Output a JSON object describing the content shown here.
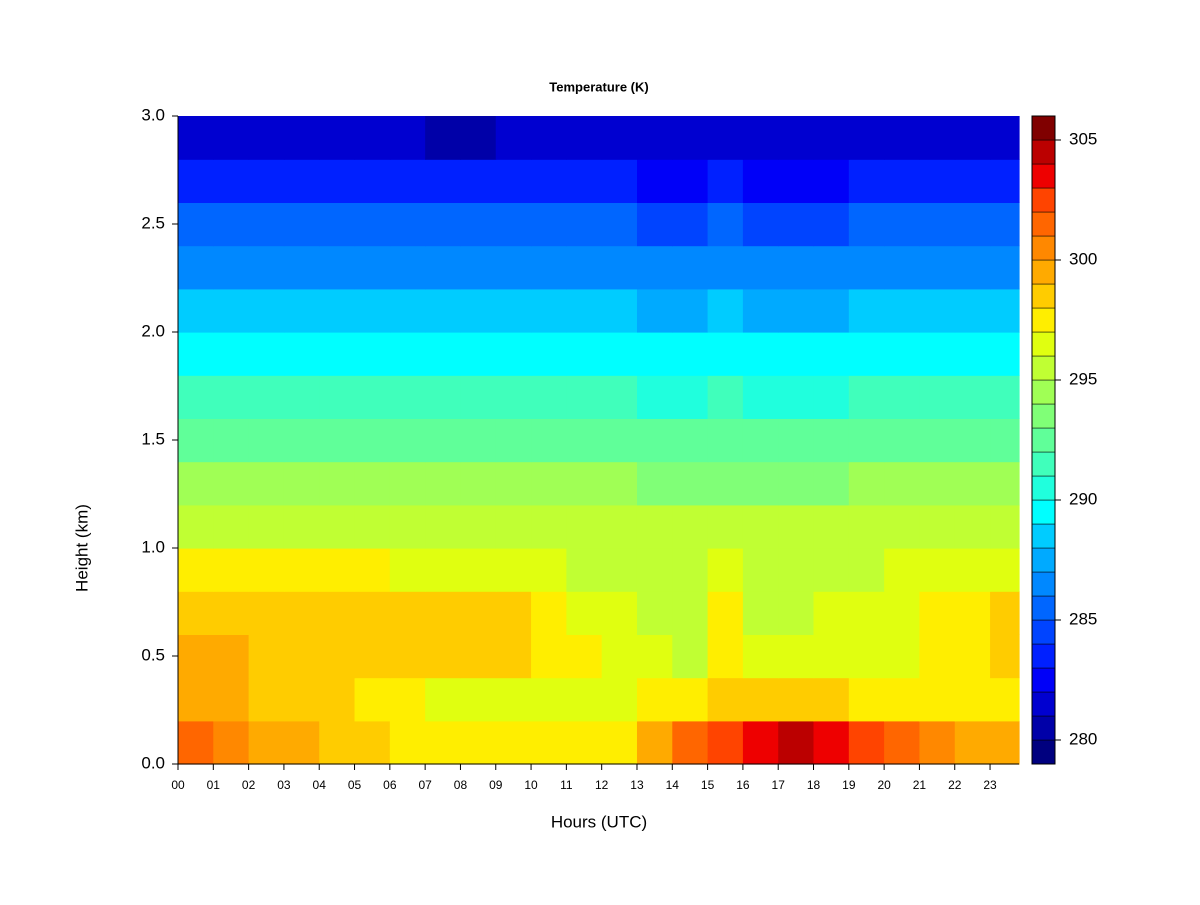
{
  "chart_data": {
    "type": "heatmap",
    "title": "Temperature (K)",
    "x_label": "Hours (UTC)",
    "y_label": "Height (km)",
    "x": [
      0,
      1,
      2,
      3,
      4,
      5,
      6,
      7,
      8,
      9,
      10,
      11,
      12,
      13,
      14,
      15,
      16,
      17,
      18,
      19,
      20,
      21,
      22,
      23
    ],
    "y": [
      0,
      0.2,
      0.4,
      0.6,
      0.8,
      1.0,
      1.2,
      1.4,
      1.6,
      1.8,
      2.0,
      2.2,
      2.4,
      2.6,
      2.8
    ],
    "z": [
      [
        301,
        300,
        299.5,
        299,
        298.5,
        298,
        297.5,
        297,
        297,
        297,
        297,
        297,
        297.5,
        299,
        301,
        302,
        303,
        304,
        303.5,
        302,
        301,
        300,
        299.5,
        299
      ],
      [
        299,
        299,
        298.5,
        298,
        298,
        297.5,
        297,
        296.5,
        296.5,
        296.5,
        296.5,
        296.5,
        296.5,
        297,
        297.5,
        298,
        298.5,
        298.5,
        298,
        297.5,
        297,
        297,
        297,
        297.5
      ],
      [
        299,
        299,
        298.5,
        298.5,
        298.5,
        298.5,
        298,
        298,
        298,
        298,
        297.5,
        297,
        296.5,
        296,
        295.5,
        297,
        296,
        296,
        296,
        296.5,
        296.5,
        297,
        297.5,
        298
      ],
      [
        298.5,
        298.5,
        298.5,
        298.5,
        298.5,
        298.5,
        298,
        298,
        298,
        298,
        297.5,
        296.5,
        296,
        295.5,
        295,
        297,
        295.5,
        295.5,
        296,
        296,
        296.5,
        297,
        297.5,
        298
      ],
      [
        297,
        297,
        297,
        297,
        297,
        297,
        296.5,
        296.5,
        296.5,
        296.5,
        296,
        295.5,
        295.5,
        295.5,
        295,
        296,
        295.5,
        295.5,
        295.5,
        295.5,
        296,
        296,
        296.5,
        296.5
      ],
      [
        295.5,
        295.5,
        295.5,
        295.5,
        295.5,
        295.5,
        295,
        295,
        295,
        295,
        295,
        295,
        295,
        295,
        295,
        295,
        295,
        295,
        295,
        295,
        295,
        295.5,
        295.5,
        295.5
      ],
      [
        294,
        294,
        294,
        294,
        294,
        294,
        294,
        294,
        294,
        294,
        294,
        294,
        294,
        293.5,
        293.5,
        293.5,
        293.5,
        293.5,
        293.5,
        294,
        294,
        294,
        294,
        294
      ],
      [
        292.5,
        292.5,
        292.5,
        292.5,
        292.5,
        292.5,
        292.5,
        292.5,
        292.5,
        292.5,
        292.5,
        292.5,
        292.5,
        292,
        292,
        292.5,
        292,
        292,
        292,
        292.5,
        292.5,
        292.5,
        292.5,
        292.5
      ],
      [
        291,
        291,
        291,
        291,
        291,
        291,
        291,
        291,
        291,
        291,
        291,
        291,
        291,
        290.5,
        290.5,
        291,
        290.5,
        290.5,
        290.5,
        291,
        291,
        291,
        291,
        291
      ],
      [
        289.5,
        289.5,
        289.5,
        289.5,
        289.5,
        289.5,
        289.5,
        289.5,
        289.5,
        289.5,
        289.5,
        289.5,
        289.5,
        289,
        289,
        289.5,
        289,
        289,
        289,
        289.5,
        289.5,
        289.5,
        289.5,
        289.5
      ],
      [
        288,
        288,
        288,
        288,
        288,
        288,
        288,
        288,
        288,
        288,
        288,
        288,
        288,
        287.5,
        287.5,
        288,
        287.5,
        287.5,
        287.5,
        288,
        288,
        288,
        288,
        288
      ],
      [
        286.5,
        286.5,
        286.5,
        286.5,
        286.5,
        286.5,
        286.5,
        286.5,
        286.5,
        286.5,
        286.5,
        286.5,
        286.5,
        286,
        286,
        286.5,
        286,
        286,
        286,
        286.5,
        286.5,
        286.5,
        286.5,
        286.5
      ],
      [
        285,
        285,
        285,
        285,
        285,
        285,
        285,
        285,
        285,
        285,
        285,
        285,
        285,
        284.5,
        284.5,
        285,
        284.5,
        284.5,
        284.5,
        285,
        285,
        285,
        285,
        285
      ],
      [
        283,
        283,
        283,
        283,
        283,
        283,
        283,
        283,
        283,
        283,
        283,
        283,
        283,
        282.5,
        282.5,
        283,
        282.5,
        282.5,
        282.5,
        283,
        283,
        283,
        283,
        283
      ],
      [
        281.5,
        281.5,
        281,
        281,
        281,
        281,
        281,
        280.5,
        280.5,
        281,
        281,
        281,
        281,
        281,
        281,
        281,
        281,
        281,
        281,
        281,
        281.5,
        281.5,
        281.5,
        281.5
      ]
    ],
    "xlim": [
      0,
      23.82
    ],
    "ylim": [
      0,
      3
    ],
    "xticks": [
      {
        "value": 0,
        "label": "00"
      },
      {
        "value": 1,
        "label": "01"
      },
      {
        "value": 2,
        "label": "02"
      },
      {
        "value": 3,
        "label": "03"
      },
      {
        "value": 4,
        "label": "04"
      },
      {
        "value": 5,
        "label": "05"
      },
      {
        "value": 6,
        "label": "06"
      },
      {
        "value": 7,
        "label": "07"
      },
      {
        "value": 8,
        "label": "08"
      },
      {
        "value": 9,
        "label": "09"
      },
      10,
      11,
      12,
      13,
      14,
      15,
      16,
      17,
      18,
      19,
      20,
      21,
      22,
      23
    ],
    "yticks": [
      {
        "value": 0,
        "label": "0.0"
      },
      0.5,
      {
        "value": 1,
        "label": "1.0"
      },
      1.5,
      {
        "value": 2,
        "label": "2.0"
      },
      2.5,
      {
        "value": 3,
        "label": "3.0"
      }
    ],
    "zlim": [
      279,
      306
    ],
    "zticks": [
      280,
      285,
      290,
      295,
      300,
      305
    ],
    "colors": [
      "#00007f",
      "#0000a8",
      "#0000d0",
      "#0000f8",
      "#0020ff",
      "#0044ff",
      "#0066ff",
      "#0088ff",
      "#00aaff",
      "#00ccff",
      "#00ffff",
      "#20ffdd",
      "#40ffbb",
      "#60ff99",
      "#80ff77",
      "#a0ff55",
      "#c0ff33",
      "#e0ff10",
      "#ffee00",
      "#ffcc00",
      "#ffaa00",
      "#ff8800",
      "#ff6600",
      "#ff4400",
      "#ee0000",
      "#bb0000",
      "#800000"
    ]
  }
}
